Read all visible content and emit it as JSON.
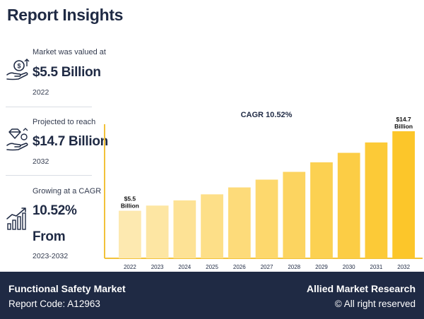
{
  "page": {
    "title": "Report Insights"
  },
  "stats": [
    {
      "label": "Market was valued at",
      "value": "$5.5 Billion",
      "year": "2022",
      "icon": "money-hand-icon"
    },
    {
      "label": "Projected to reach",
      "value": "$14.7 Billion",
      "year": "2032",
      "icon": "diamond-hand-icon"
    },
    {
      "label": "Growing at a CAGR",
      "value": "10.52%",
      "value2": "From",
      "year": "2023-2032",
      "icon": "growth-chart-icon"
    }
  ],
  "footer": {
    "market": "Functional Safety Market",
    "report_code": "Report Code: A12963",
    "brand": "Allied Market Research",
    "rights": "© All right reserved"
  },
  "colors": {
    "navy": "#1f2a44",
    "bar_start": "#fde9b0",
    "bar_end": "#fcc62a",
    "axis": "#f2c23a"
  },
  "chart_data": {
    "type": "bar",
    "title": "CAGR 10.52%",
    "categories": [
      "2022",
      "2023",
      "2024",
      "2025",
      "2026",
      "2027",
      "2028",
      "2029",
      "2030",
      "2031",
      "2032"
    ],
    "values": [
      5.5,
      6.1,
      6.7,
      7.4,
      8.2,
      9.1,
      10.0,
      11.1,
      12.2,
      13.4,
      14.7
    ],
    "ylim": [
      0,
      16
    ],
    "xlabel": "",
    "ylabel": "",
    "units": "Billion",
    "annotations": [
      {
        "index": 0,
        "line1": "$5.5",
        "line2": "Billion"
      },
      {
        "index": 10,
        "line1": "$14.7",
        "line2": "Billion"
      }
    ]
  }
}
